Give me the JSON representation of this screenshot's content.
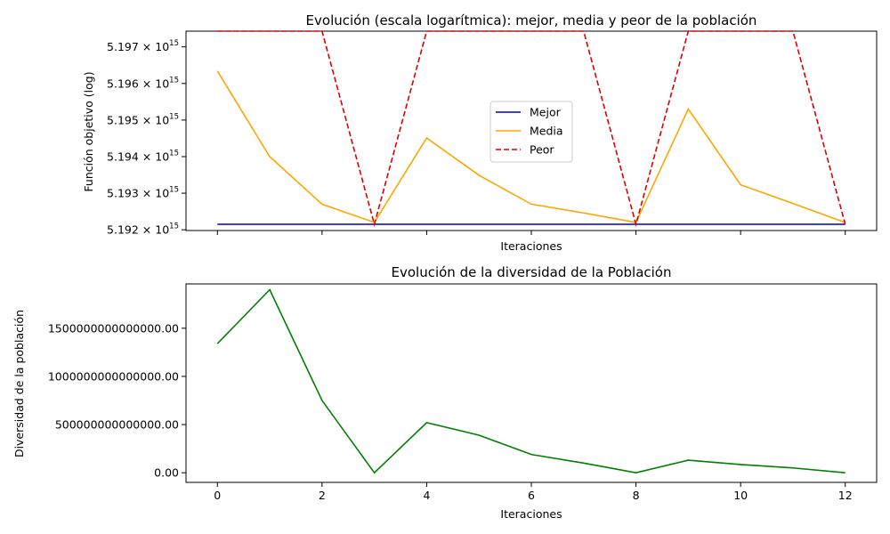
{
  "chart_data": [
    {
      "type": "line",
      "title": "Evolución (escala logarítmica): mejor, media y peor de la población",
      "xlabel": "Iteraciones",
      "ylabel": "Función objetivo (log)",
      "y_scale": "log",
      "x_ticks_labeled": false,
      "xlim": [
        -0.6,
        12.6
      ],
      "ylim": [
        5191980000000000.0,
        5197430000000000.0
      ],
      "x": [
        0,
        1,
        2,
        3,
        4,
        5,
        6,
        7,
        8,
        9,
        10,
        11,
        12
      ],
      "x_ticks": [
        0,
        2,
        4,
        6,
        8,
        10,
        12
      ],
      "y_ticks": [
        {
          "mantissa": "5.192",
          "exp": "15",
          "value": 5192000000000000.0
        },
        {
          "mantissa": "5.193",
          "exp": "15",
          "value": 5193000000000000.0
        },
        {
          "mantissa": "5.194",
          "exp": "15",
          "value": 5194000000000000.0
        },
        {
          "mantissa": "5.195",
          "exp": "15",
          "value": 5195000000000000.0
        },
        {
          "mantissa": "5.196",
          "exp": "15",
          "value": 5196000000000000.0
        },
        {
          "mantissa": "5.197",
          "exp": "15",
          "value": 5197000000000000.0
        }
      ],
      "legend": "center-right",
      "series": [
        {
          "name": "Mejor",
          "color": "#0000cc",
          "style": "solid",
          "values": [
            5192150000000000.0,
            5192150000000000.0,
            5192150000000000.0,
            5192150000000000.0,
            5192150000000000.0,
            5192150000000000.0,
            5192150000000000.0,
            5192150000000000.0,
            5192150000000000.0,
            5192150000000000.0,
            5192150000000000.0,
            5192150000000000.0,
            5192150000000000.0
          ]
        },
        {
          "name": "Media",
          "color": "#ffa500",
          "style": "solid",
          "values": [
            5196340000000000.0,
            5194000000000000.0,
            5192700000000000.0,
            5192200000000000.0,
            5194510000000000.0,
            5193490000000000.0,
            5192700000000000.0,
            5192460000000000.0,
            5192200000000000.0,
            5195300000000000.0,
            5193230000000000.0,
            5192720000000000.0,
            5192200000000000.0
          ]
        },
        {
          "name": "Peor",
          "color": "#dd0000",
          "style": "dashed",
          "values": [
            5197430000000000.0,
            5197430000000000.0,
            5197430000000000.0,
            5192150000000000.0,
            5197430000000000.0,
            5197430000000000.0,
            5197430000000000.0,
            5197430000000000.0,
            5192150000000000.0,
            5197430000000000.0,
            5197430000000000.0,
            5197430000000000.0,
            5192150000000000.0
          ]
        }
      ]
    },
    {
      "type": "line",
      "title": "Evolución de la diversidad de la Población",
      "xlabel": "Iteraciones",
      "ylabel": "Diversidad de la población",
      "xlim": [
        -0.6,
        12.6
      ],
      "ylim": [
        -100000000000000,
        1960000000000000
      ],
      "x": [
        0,
        1,
        2,
        3,
        4,
        5,
        6,
        7,
        8,
        9,
        10,
        11,
        12
      ],
      "x_ticks": [
        0,
        2,
        4,
        6,
        8,
        10,
        12
      ],
      "y_ticks": [
        {
          "label": "0.00",
          "value": 0
        },
        {
          "label": "500000000000000.00",
          "value": 500000000000000
        },
        {
          "label": "1000000000000000.00",
          "value": 1000000000000000
        },
        {
          "label": "1500000000000000.00",
          "value": 1500000000000000
        }
      ],
      "series": [
        {
          "color": "#008000",
          "values": [
            1340000000000000,
            1900000000000000,
            750000000000000,
            0,
            520000000000000,
            390000000000000,
            190000000000000,
            100000000000000,
            0,
            130000000000000,
            85000000000000,
            50000000000000,
            0
          ]
        }
      ]
    }
  ]
}
